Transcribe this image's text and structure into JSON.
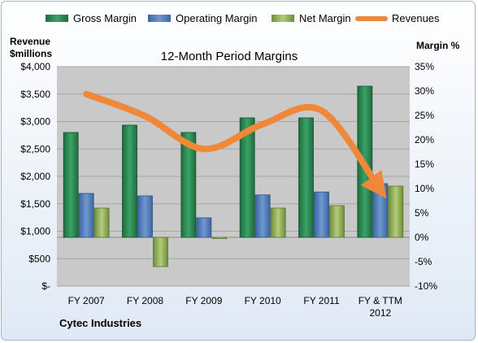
{
  "chart_data": {
    "type": "bar",
    "title": "12-Month Period Margins",
    "company": "Cytec Industries",
    "y_left_label_line1": "Revenue",
    "y_left_label_line2": "$millions",
    "y_right_label": "Margin %",
    "categories": [
      [
        "FY 2007"
      ],
      [
        "FY 2008"
      ],
      [
        "FY 2009"
      ],
      [
        "FY 2010"
      ],
      [
        "FY 2011"
      ],
      [
        "FY & TTM",
        "2012"
      ]
    ],
    "left_axis": {
      "min": 0,
      "max": 4000,
      "step": 500,
      "ticks": [
        "$-",
        "$500",
        "$1,000",
        "$1,500",
        "$2,000",
        "$2,500",
        "$3,000",
        "$3,500",
        "$4,000"
      ]
    },
    "right_axis": {
      "min": -10,
      "max": 35,
      "step": 5,
      "ticks": [
        "-10%",
        "-5%",
        "0%",
        "5%",
        "10%",
        "15%",
        "20%",
        "25%",
        "30%",
        "35%"
      ]
    },
    "series": [
      {
        "name": "Gross Margin",
        "kind": "bar",
        "axis": "right",
        "color": "#2e8b57",
        "values": [
          21.5,
          23.0,
          21.5,
          24.5,
          24.5,
          31.0
        ]
      },
      {
        "name": "Operating Margin",
        "kind": "bar",
        "axis": "right",
        "color": "#4f81bd",
        "values": [
          9.0,
          8.5,
          4.0,
          8.7,
          9.3,
          11.0
        ]
      },
      {
        "name": "Net Margin",
        "kind": "bar",
        "axis": "right",
        "color": "#9bbb59",
        "values": [
          6.0,
          -6.0,
          -0.2,
          6.0,
          6.5,
          10.5
        ]
      },
      {
        "name": "Revenues",
        "kind": "line",
        "axis": "left",
        "color": "#f0883a",
        "values": [
          3500,
          3100,
          2500,
          2950,
          3200,
          1750
        ]
      }
    ]
  }
}
